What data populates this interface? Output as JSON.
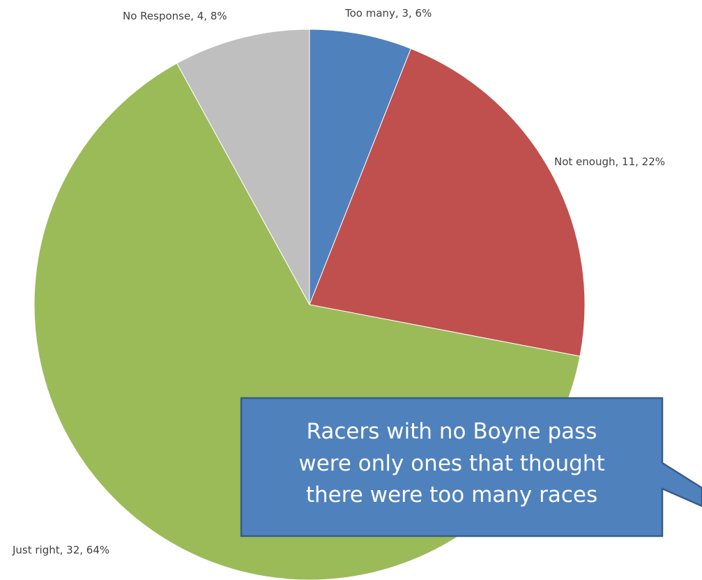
{
  "chart_data": {
    "type": "pie",
    "title": "",
    "slices": [
      {
        "name": "Too many",
        "value": 3,
        "percent": 6,
        "label": "Too many, 3, 6%",
        "color": "#4F81BD"
      },
      {
        "name": "Not enough",
        "value": 11,
        "percent": 22,
        "label": "Not enough, 11, 22%",
        "color": "#C0504D"
      },
      {
        "name": "Just right",
        "value": 32,
        "percent": 64,
        "label": "Just right, 32, 64%",
        "color": "#9BBB59"
      },
      {
        "name": "No Response",
        "value": 4,
        "percent": 8,
        "label": "No Response, 4, 8%",
        "color": "#BFBFBF"
      }
    ],
    "start_angle": "12 o'clock",
    "direction": "clockwise",
    "legend": "none"
  },
  "callout": {
    "lines": [
      "Racers with no Boyne pass",
      "were only ones that thought",
      "there were too many races"
    ],
    "fill_color": "#4F81BD",
    "border_color": "#385D8A"
  }
}
